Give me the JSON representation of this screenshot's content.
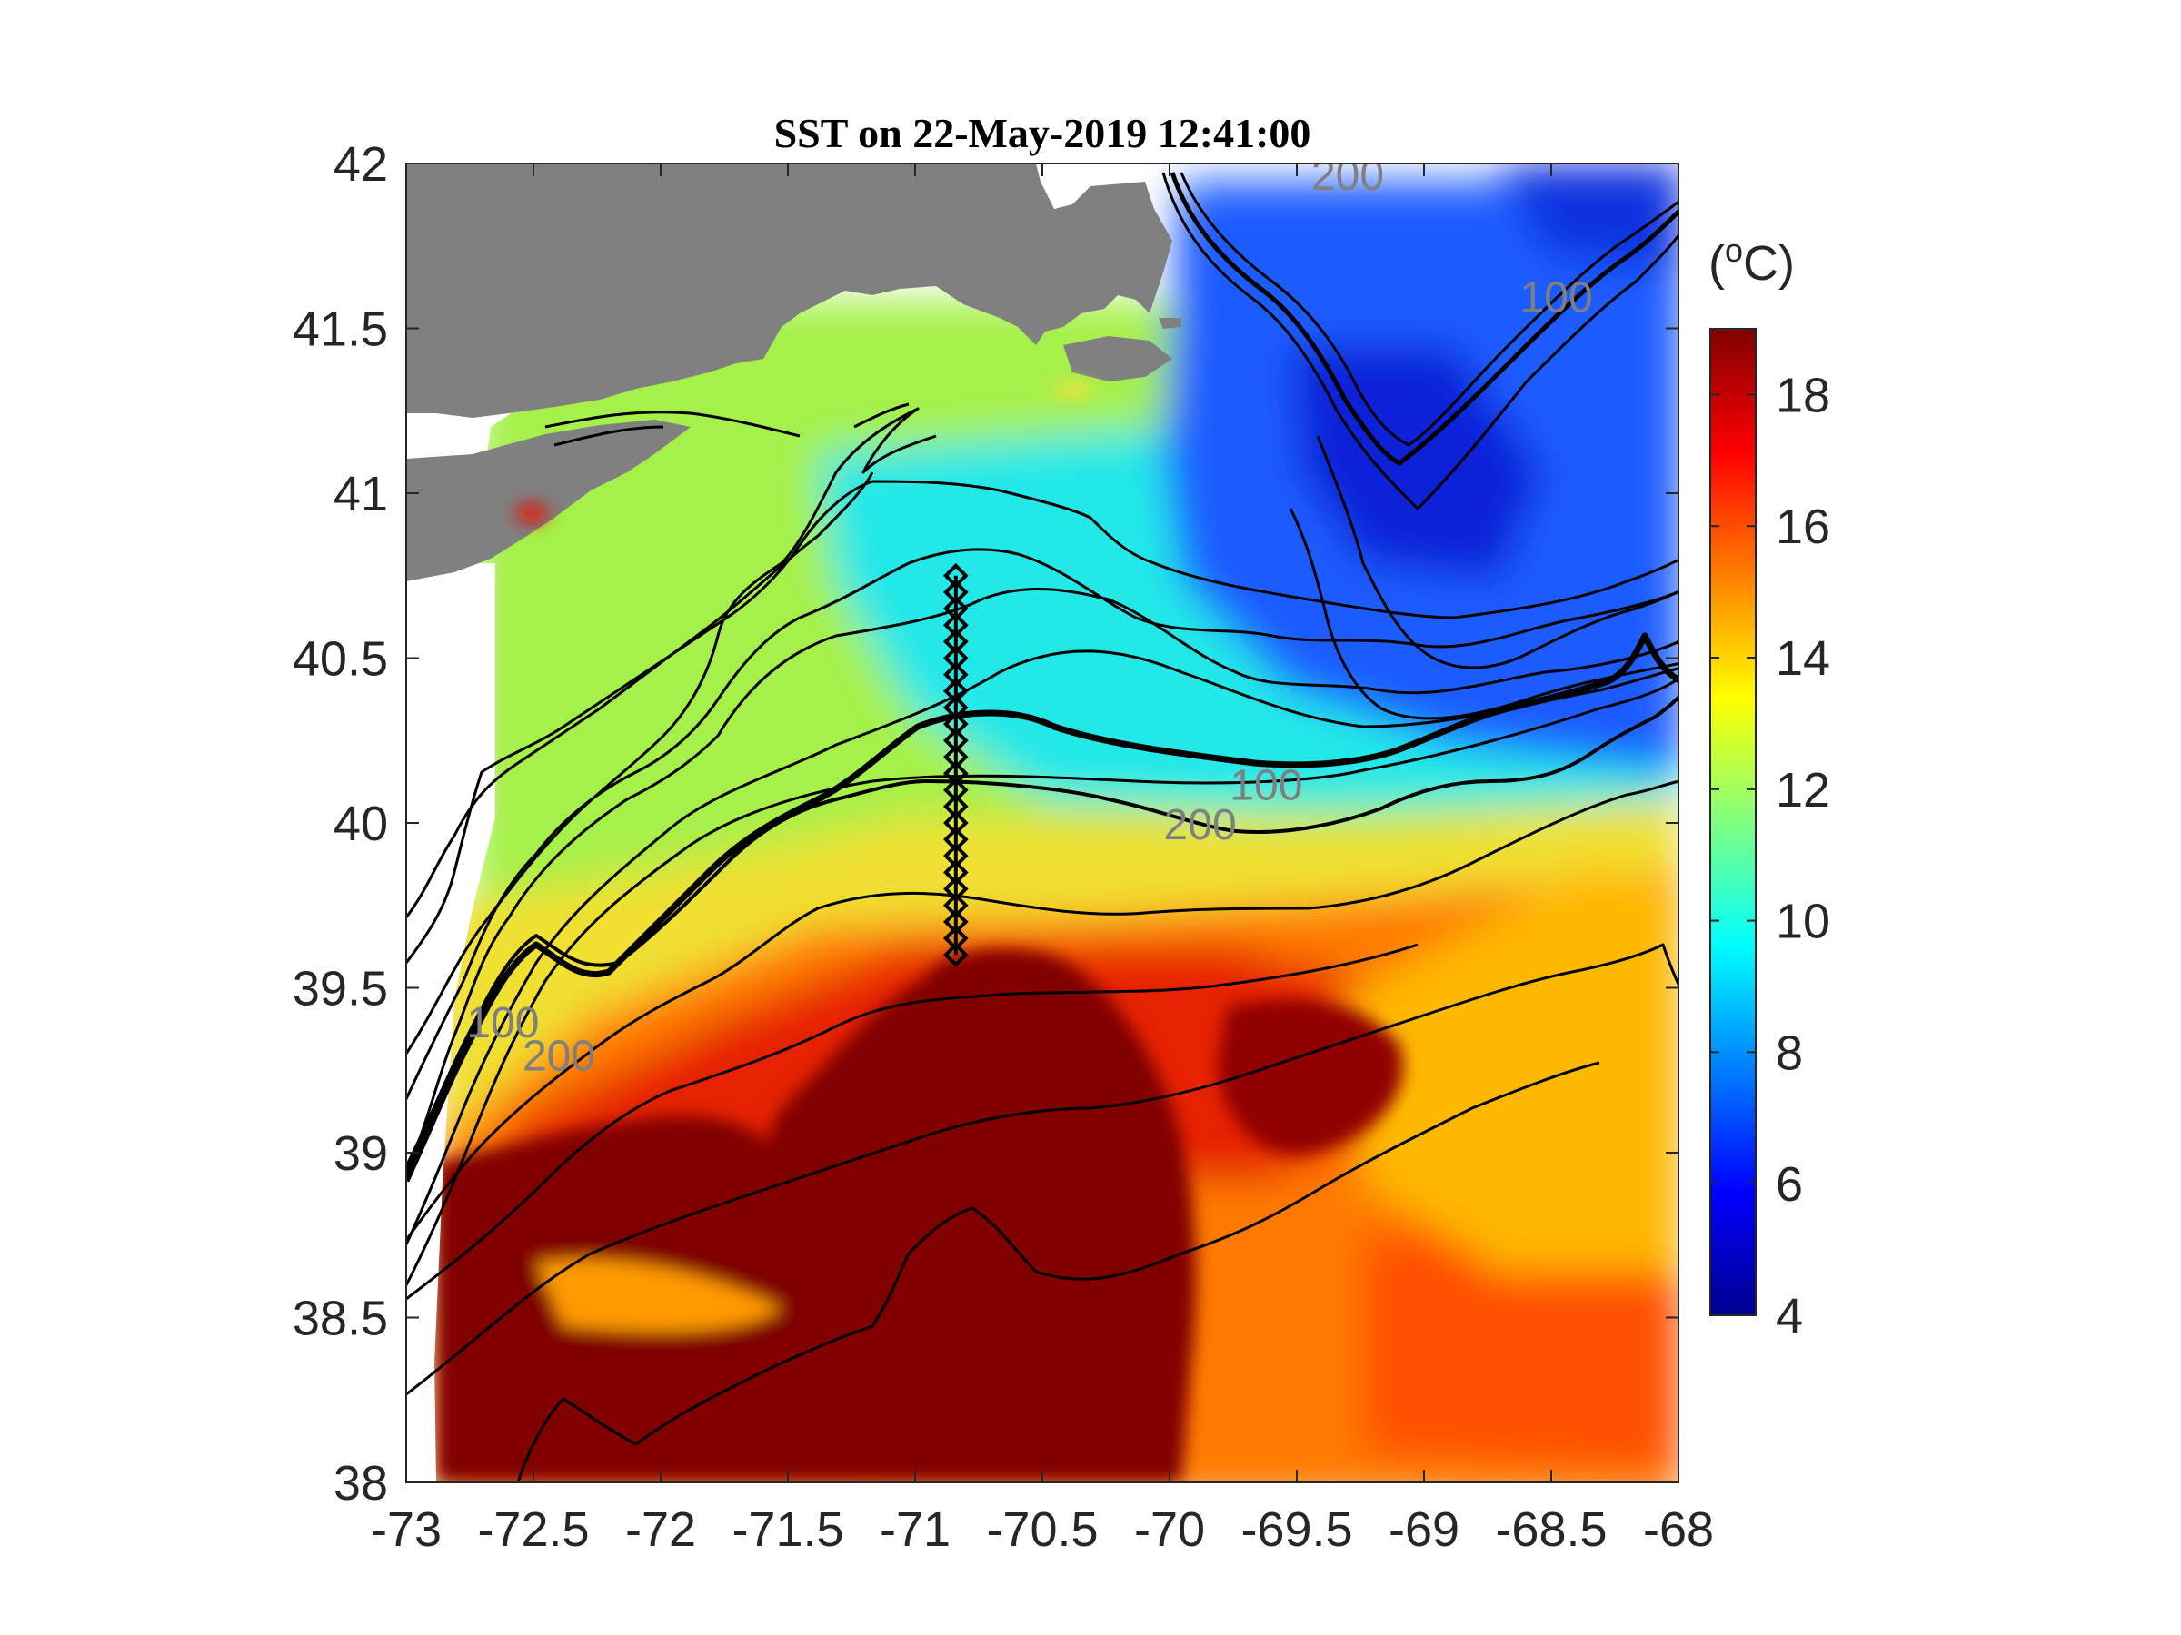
{
  "chart_data": {
    "type": "heatmap",
    "title": "SST on 22-May-2019 12:41:00",
    "xlabel": "",
    "ylabel": "",
    "xlim": [
      -73,
      -68
    ],
    "ylim": [
      38,
      42
    ],
    "x_ticks": [
      "-73",
      "-72.5",
      "-72",
      "-71.5",
      "-71",
      "-70.5",
      "-70",
      "-69.5",
      "-69",
      "-68.5",
      "-68"
    ],
    "y_ticks": [
      "42",
      "41.5",
      "41",
      "40.5",
      "40",
      "39.5",
      "39",
      "38.5",
      "38"
    ],
    "colorbar": {
      "unit_prefix": "(",
      "unit_super": "o",
      "unit_suffix": "C)",
      "range": [
        4,
        19
      ],
      "ticks": [
        "18",
        "16",
        "14",
        "12",
        "10",
        "8",
        "6",
        "4"
      ],
      "colormap": "jet"
    },
    "contour_labels": [
      {
        "text": "200",
        "lon": -69.3,
        "lat": 41.92
      },
      {
        "text": "100",
        "lon": -68.48,
        "lat": 41.55
      },
      {
        "text": "100",
        "lon": -69.62,
        "lat": 40.07
      },
      {
        "text": "200",
        "lon": -69.88,
        "lat": 39.95
      },
      {
        "text": "100",
        "lon": -72.62,
        "lat": 39.35
      },
      {
        "text": "200",
        "lon": -72.4,
        "lat": 39.25
      }
    ],
    "transect": {
      "lon": -70.84,
      "lat_start": 39.6,
      "lat_end": 40.75,
      "station_lats": [
        40.75,
        40.7,
        40.65,
        40.6,
        40.55,
        40.5,
        40.45,
        40.4,
        40.35,
        40.3,
        40.25,
        40.2,
        40.15,
        40.1,
        40.05,
        40.0,
        39.95,
        39.9,
        39.85,
        39.8,
        39.75,
        39.7,
        39.65,
        39.6
      ]
    },
    "land_color": "#808080",
    "grid": false
  }
}
